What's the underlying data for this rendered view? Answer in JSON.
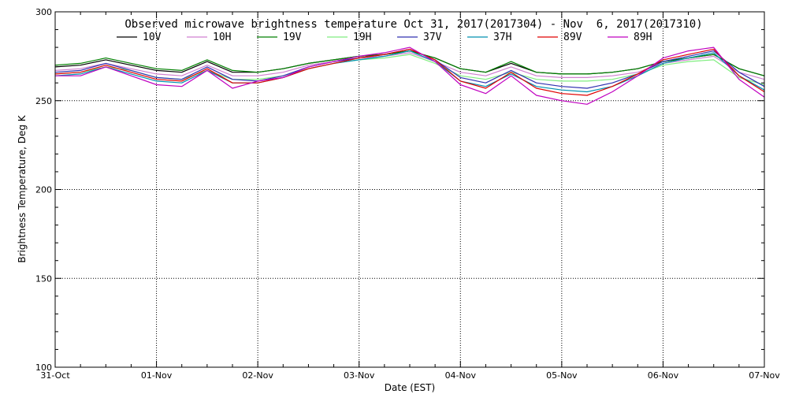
{
  "chart_data": {
    "type": "line",
    "title": "Observed microwave brightness temperature Oct 31, 2017(2017304) - Nov  6, 2017(2017310)",
    "xlabel": "Date (EST)",
    "ylabel": "Brightness Temperature, Deg K",
    "xlim": [
      "2017-10-31",
      "2017-11-07"
    ],
    "ylim": [
      100,
      300
    ],
    "x_ticks": [
      "31-Oct",
      "01-Nov",
      "02-Nov",
      "03-Nov",
      "04-Nov",
      "05-Nov",
      "06-Nov",
      "07-Nov"
    ],
    "y_ticks": [
      100,
      150,
      200,
      250,
      300
    ],
    "grid": "dotted, major ticks",
    "legend_position": "top, below title",
    "x": [
      "2017-10-31T00:00",
      "2017-10-31T06:00",
      "2017-10-31T12:00",
      "2017-10-31T18:00",
      "2017-11-01T00:00",
      "2017-11-01T06:00",
      "2017-11-01T12:00",
      "2017-11-01T18:00",
      "2017-11-02T00:00",
      "2017-11-02T06:00",
      "2017-11-02T12:00",
      "2017-11-02T18:00",
      "2017-11-03T00:00",
      "2017-11-03T06:00",
      "2017-11-03T12:00",
      "2017-11-03T18:00",
      "2017-11-04T00:00",
      "2017-11-04T06:00",
      "2017-11-04T12:00",
      "2017-11-04T18:00",
      "2017-11-05T00:00",
      "2017-11-05T06:00",
      "2017-11-05T12:00",
      "2017-11-05T18:00",
      "2017-11-06T00:00",
      "2017-11-06T06:00",
      "2017-11-06T12:00",
      "2017-11-06T18:00",
      "2017-11-07T00:00"
    ],
    "series": [
      {
        "name": "10V",
        "color": "#000000",
        "values": [
          269,
          270,
          273,
          270,
          267,
          266,
          272,
          266,
          266,
          268,
          271,
          273,
          275,
          276,
          278,
          274,
          268,
          266,
          271,
          266,
          265,
          265,
          266,
          268,
          272,
          274,
          276,
          268,
          264
        ]
      },
      {
        "name": "10H",
        "color": "#d080d0",
        "values": [
          267,
          268,
          271,
          268,
          265,
          264,
          270,
          264,
          264,
          266,
          270,
          272,
          274,
          275,
          277,
          272,
          266,
          264,
          269,
          264,
          263,
          263,
          264,
          266,
          271,
          273,
          275,
          266,
          262
        ]
      },
      {
        "name": "19V",
        "color": "#008000",
        "values": [
          270,
          271,
          274,
          271,
          268,
          267,
          273,
          267,
          266,
          268,
          271,
          273,
          275,
          276,
          278,
          274,
          268,
          266,
          272,
          266,
          265,
          265,
          266,
          268,
          272,
          274,
          276,
          268,
          264
        ]
      },
      {
        "name": "19H",
        "color": "#80ee80",
        "values": [
          265,
          266,
          269,
          267,
          263,
          262,
          267,
          262,
          262,
          264,
          268,
          271,
          273,
          274,
          276,
          271,
          264,
          262,
          266,
          262,
          261,
          261,
          262,
          265,
          270,
          272,
          273,
          263,
          259
        ]
      },
      {
        "name": "37V",
        "color": "#3030b0",
        "values": [
          266,
          267,
          271,
          267,
          263,
          262,
          269,
          262,
          261,
          264,
          269,
          272,
          274,
          276,
          279,
          273,
          263,
          260,
          267,
          260,
          258,
          257,
          260,
          265,
          272,
          275,
          278,
          266,
          258
        ]
      },
      {
        "name": "37H",
        "color": "#0090b0",
        "values": [
          264,
          265,
          269,
          265,
          261,
          260,
          267,
          260,
          260,
          263,
          268,
          271,
          273,
          275,
          278,
          272,
          261,
          258,
          265,
          258,
          256,
          255,
          258,
          264,
          271,
          274,
          277,
          264,
          256
        ]
      },
      {
        "name": "89V",
        "color": "#e00000",
        "values": [
          265,
          266,
          270,
          266,
          262,
          261,
          268,
          260,
          260,
          263,
          268,
          271,
          274,
          276,
          279,
          273,
          261,
          257,
          266,
          257,
          254,
          253,
          258,
          265,
          273,
          276,
          279,
          264,
          255
        ]
      },
      {
        "name": "89H",
        "color": "#c000c0",
        "values": [
          264,
          264,
          269,
          264,
          259,
          258,
          267,
          257,
          261,
          263,
          269,
          272,
          275,
          277,
          280,
          272,
          259,
          254,
          264,
          253,
          250,
          248,
          255,
          264,
          274,
          278,
          280,
          262,
          252
        ]
      }
    ]
  }
}
